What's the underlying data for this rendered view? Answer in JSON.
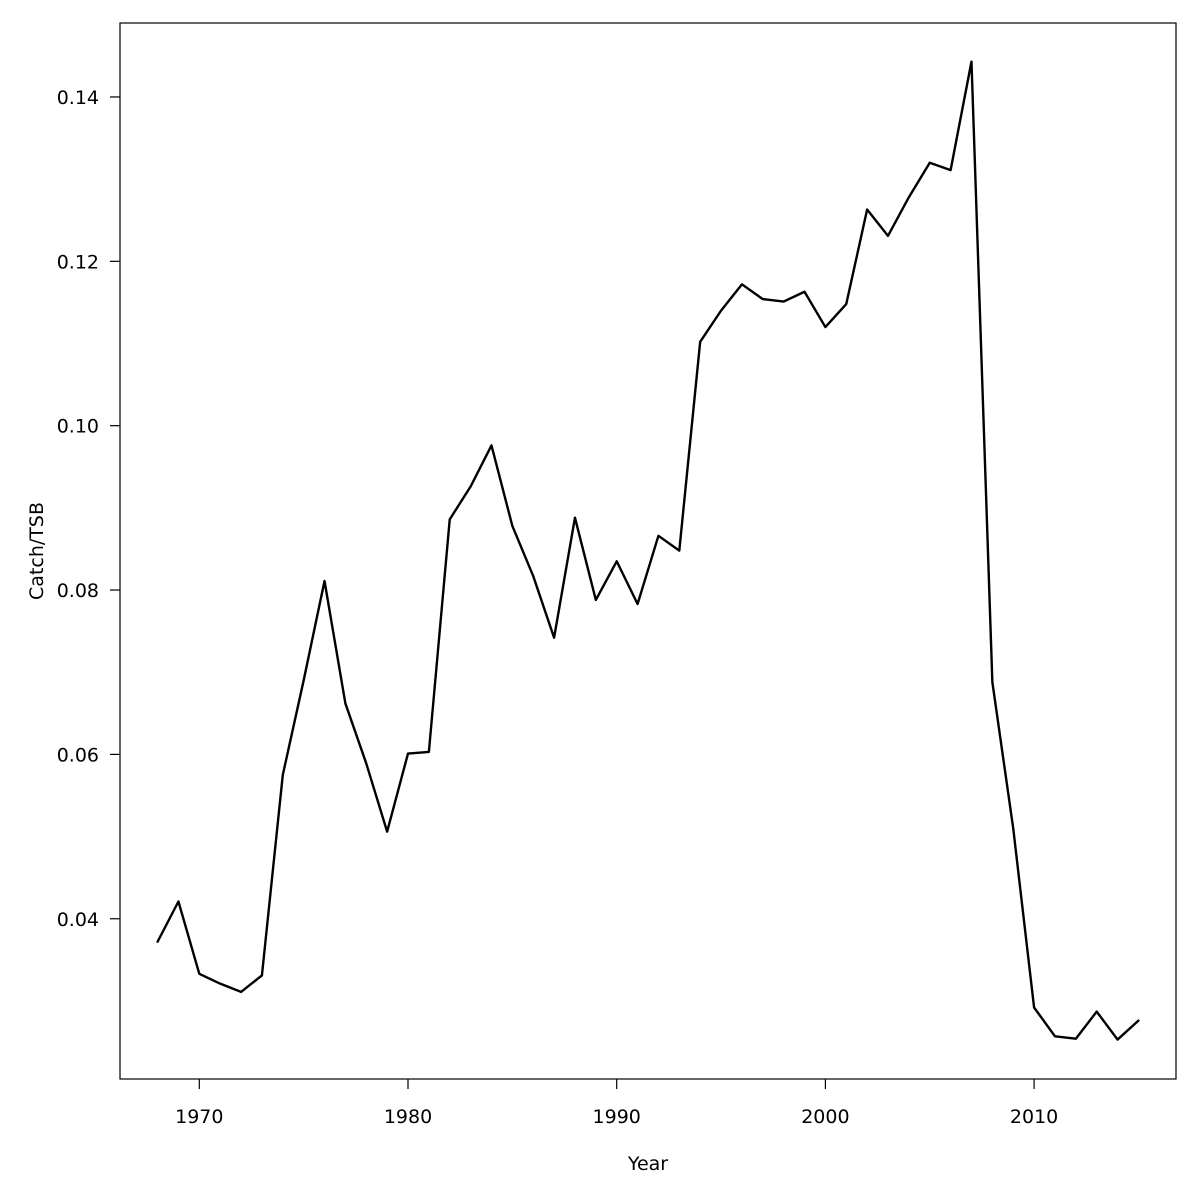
{
  "chart_data": {
    "type": "line",
    "title": "",
    "xlabel": "Year",
    "ylabel": "Catch/TSB",
    "xlim": [
      1966.2,
      2016.8
    ],
    "ylim": [
      0.0205,
      0.149
    ],
    "x_ticks": [
      1970,
      1980,
      1990,
      2000,
      2010
    ],
    "x_tick_labels": [
      "1970",
      "1980",
      "1990",
      "2000",
      "2010"
    ],
    "y_ticks": [
      0.04,
      0.06,
      0.08,
      0.1,
      0.12,
      0.14
    ],
    "y_tick_labels": [
      "0.04",
      "0.06",
      "0.08",
      "0.10",
      "0.12",
      "0.14"
    ],
    "grid": false,
    "line_color": "#000000",
    "x": [
      1968,
      1969,
      1970,
      1971,
      1972,
      1973,
      1974,
      1975,
      1976,
      1977,
      1978,
      1979,
      1980,
      1981,
      1982,
      1983,
      1984,
      1985,
      1986,
      1987,
      1988,
      1989,
      1990,
      1991,
      1992,
      1993,
      1994,
      1995,
      1996,
      1997,
      1998,
      1999,
      2000,
      2001,
      2002,
      2003,
      2004,
      2005,
      2006,
      2007,
      2008,
      2009,
      2010,
      2011,
      2012,
      2013,
      2014,
      2015
    ],
    "values": [
      0.0372,
      0.0421,
      0.0333,
      0.0321,
      0.0311,
      0.0331,
      0.0575,
      0.069,
      0.0811,
      0.0662,
      0.0589,
      0.0506,
      0.0601,
      0.0603,
      0.0886,
      0.0926,
      0.0976,
      0.0878,
      0.0817,
      0.0742,
      0.0888,
      0.0788,
      0.0835,
      0.0783,
      0.0866,
      0.0848,
      0.1102,
      0.114,
      0.1172,
      0.1154,
      0.1151,
      0.1163,
      0.112,
      0.1148,
      0.1263,
      0.1231,
      0.1278,
      0.132,
      0.1311,
      0.1443,
      0.0688,
      0.051,
      0.0292,
      0.0257,
      0.0254,
      0.0287,
      0.0253,
      0.0276
    ]
  }
}
